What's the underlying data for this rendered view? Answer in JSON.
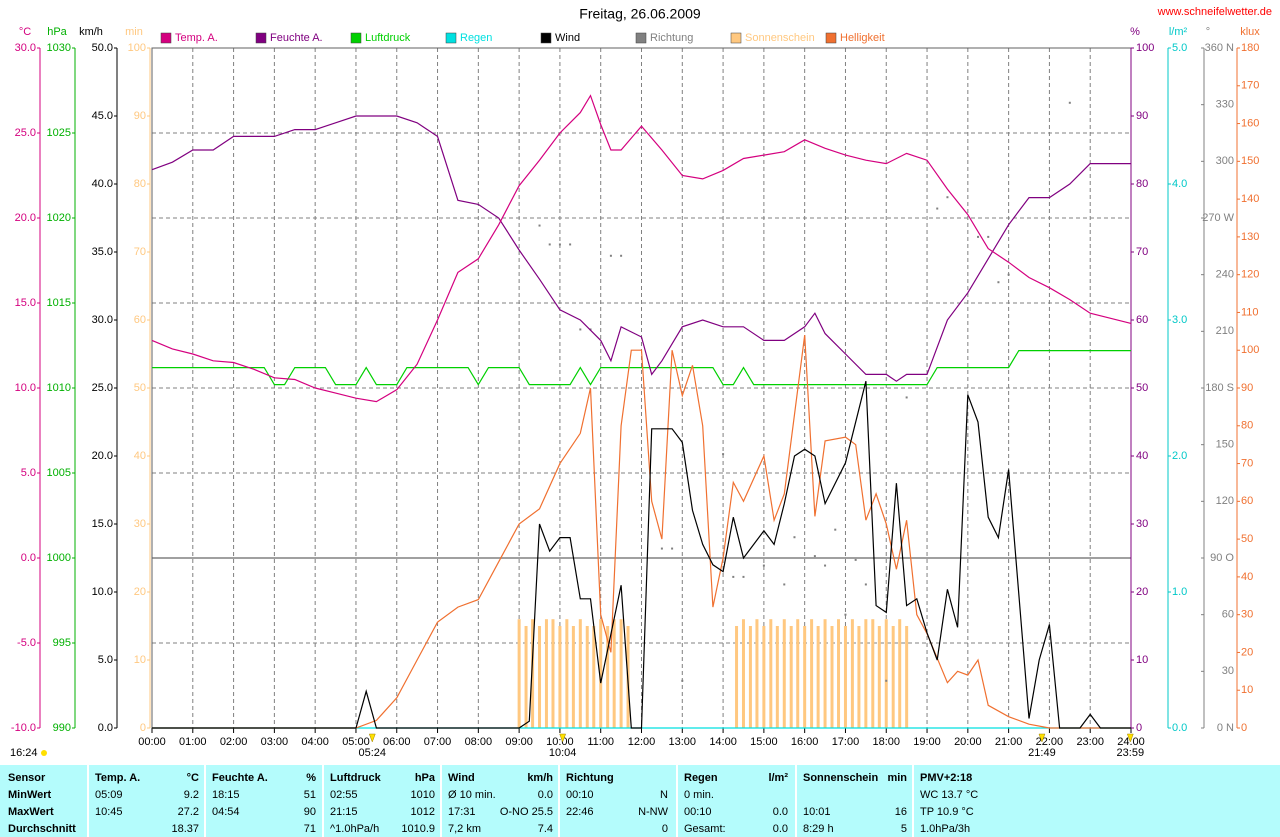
{
  "chart_data": {
    "type": "line",
    "title": "Freitag, 26.06.2009",
    "source": "www.schneifelwetter.de",
    "timestamp": "16:24",
    "xlim": [
      0,
      24
    ],
    "xticks": [
      {
        "value": 0,
        "label": "00:00"
      },
      {
        "value": 1,
        "label": "01:00"
      },
      {
        "value": 2,
        "label": "02:00"
      },
      {
        "value": 3,
        "label": "03:00"
      },
      {
        "value": 4,
        "label": "04:00"
      },
      {
        "value": 5,
        "label": "05:00"
      },
      {
        "value": 6,
        "label": "06:00"
      },
      {
        "value": 7,
        "label": "07:00"
      },
      {
        "value": 8,
        "label": "08:00"
      },
      {
        "value": 9,
        "label": "09:00"
      },
      {
        "value": 10,
        "label": "10:00"
      },
      {
        "value": 11,
        "label": "11:00"
      },
      {
        "value": 12,
        "label": "12:00"
      },
      {
        "value": 13,
        "label": "13:00"
      },
      {
        "value": 14,
        "label": "14:00"
      },
      {
        "value": 15,
        "label": "15:00"
      },
      {
        "value": 16,
        "label": "16:00"
      },
      {
        "value": 17,
        "label": "17:00"
      },
      {
        "value": 18,
        "label": "18:00"
      },
      {
        "value": 19,
        "label": "19:00"
      },
      {
        "value": 20,
        "label": "20:00"
      },
      {
        "value": 21,
        "label": "21:00"
      },
      {
        "value": 22,
        "label": "22:00"
      },
      {
        "value": 23,
        "label": "23:00"
      },
      {
        "value": 24,
        "label": "24:00"
      }
    ],
    "grid": true,
    "grid_axis": 0,
    "zero_line": true,
    "markers": [
      {
        "label": "05:24",
        "x": 5.4
      },
      {
        "label": "10:04",
        "x": 10.067
      },
      {
        "label": "21:49",
        "x": 21.817
      },
      {
        "label": "23:59",
        "x": 23.983
      }
    ],
    "axes": [
      {
        "label": "°C",
        "color": "#d4007f",
        "lim": [
          -10,
          30
        ],
        "ticks": [
          {
            "value": -10,
            "label": "-10.0"
          },
          {
            "value": -5,
            "label": "-5.0"
          },
          {
            "value": 0,
            "label": "0.0"
          },
          {
            "value": 5,
            "label": "5.0"
          },
          {
            "value": 10,
            "label": "10.0"
          },
          {
            "value": 15,
            "label": "15.0"
          },
          {
            "value": 20,
            "label": "20.0"
          },
          {
            "value": 25,
            "label": "25.0"
          },
          {
            "value": 30,
            "label": "30.0"
          }
        ]
      },
      {
        "label": "hPa",
        "color": "#00b000",
        "lim": [
          990,
          1030
        ],
        "ticks": [
          990,
          995,
          1000,
          1005,
          1010,
          1015,
          1020,
          1025,
          1030
        ]
      },
      {
        "label": "km/h",
        "color": "#000000",
        "lim": [
          0,
          50
        ],
        "ticks": [
          {
            "value": 0,
            "label": "0.0"
          },
          {
            "value": 5,
            "label": "5.0"
          },
          {
            "value": 10,
            "label": "10.0"
          },
          {
            "value": 15,
            "label": "15.0"
          },
          {
            "value": 20,
            "label": "20.0"
          },
          {
            "value": 25,
            "label": "25.0"
          },
          {
            "value": 30,
            "label": "30.0"
          },
          {
            "value": 35,
            "label": "35.0"
          },
          {
            "value": 40,
            "label": "40.0"
          },
          {
            "value": 45,
            "label": "45.0"
          },
          {
            "value": 50,
            "label": "50.0"
          }
        ]
      },
      {
        "label": "min",
        "color": "#ffc880",
        "lim": [
          0,
          100
        ],
        "ticks": [
          0,
          10,
          20,
          30,
          40,
          50,
          60,
          70,
          80,
          90,
          100
        ]
      },
      {
        "label": "%",
        "color": "#800080",
        "lim": [
          0,
          100
        ],
        "ticks": [
          0,
          10,
          20,
          30,
          40,
          50,
          60,
          70,
          80,
          90,
          100
        ]
      },
      {
        "label": "l/m²",
        "color": "#00c8c8",
        "lim": [
          0,
          5
        ],
        "ticks": [
          {
            "value": 0,
            "label": "0.0"
          },
          {
            "value": 1,
            "label": "1.0"
          },
          {
            "value": 2,
            "label": "2.0"
          },
          {
            "value": 3,
            "label": "3.0"
          },
          {
            "value": 4,
            "label": "4.0"
          },
          {
            "value": 5,
            "label": "5.0"
          }
        ]
      },
      {
        "label": "°",
        "color": "#808080",
        "lim": [
          0,
          360
        ],
        "ticks": [
          {
            "value": 0,
            "label": "0 N"
          },
          30,
          60,
          {
            "value": 90,
            "label": "90 O"
          },
          120,
          150,
          {
            "value": 180,
            "label": "180 S"
          },
          210,
          240,
          {
            "value": 270,
            "label": "270 W"
          },
          300,
          330,
          {
            "value": 360,
            "label": "360 N"
          }
        ]
      },
      {
        "label": "klux",
        "color": "#f07030",
        "lim": [
          0,
          180
        ],
        "ticks": [
          0,
          10,
          20,
          30,
          40,
          50,
          60,
          70,
          80,
          90,
          100,
          110,
          120,
          130,
          140,
          150,
          160,
          170,
          180
        ]
      }
    ],
    "series": [
      {
        "name": "Temp. A.",
        "color": "#d4007f",
        "axis": 0,
        "style": "line",
        "x": [
          0,
          0.5,
          1,
          1.5,
          2,
          2.5,
          3,
          3.5,
          4,
          4.5,
          5,
          5.5,
          6,
          6.5,
          7,
          7.5,
          8,
          8.5,
          9,
          9.5,
          10,
          10.5,
          10.75,
          11,
          11.25,
          11.5,
          12,
          12.5,
          13,
          13.5,
          14,
          14.5,
          15,
          15.5,
          16,
          16.5,
          17,
          17.5,
          18,
          18.5,
          19,
          19.5,
          20,
          20.5,
          21,
          21.5,
          22,
          22.5,
          23,
          23.5,
          24
        ],
        "values": [
          12.8,
          12.3,
          12.0,
          11.6,
          11.5,
          11.1,
          10.6,
          10.5,
          10.0,
          9.7,
          9.4,
          9.2,
          9.9,
          11.4,
          14.0,
          16.8,
          17.6,
          19.6,
          21.9,
          23.4,
          25.0,
          26.2,
          27.2,
          25.5,
          24.0,
          24.0,
          25.4,
          24.0,
          22.5,
          22.3,
          22.8,
          23.5,
          23.7,
          23.9,
          24.6,
          24.1,
          23.7,
          23.4,
          23.2,
          23.8,
          23.4,
          21.7,
          20.2,
          18.2,
          17.4,
          16.5,
          15.9,
          15.2,
          14.4,
          14.1,
          13.8
        ]
      },
      {
        "name": "Feuchte A.",
        "color": "#800080",
        "axis": 4,
        "style": "line",
        "x": [
          0,
          0.5,
          1,
          1.5,
          2,
          2.5,
          3,
          3.5,
          4,
          4.5,
          5,
          5.5,
          6,
          6.5,
          7,
          7.5,
          8,
          8.5,
          9,
          9.5,
          10,
          10.5,
          11,
          11.25,
          11.5,
          12,
          12.25,
          12.5,
          13,
          13.5,
          14,
          14.5,
          15,
          15.5,
          16,
          16.25,
          16.5,
          17,
          17.5,
          18,
          18.25,
          18.5,
          19,
          19.5,
          20,
          20.5,
          21,
          21.5,
          22,
          22.5,
          23,
          23.5,
          24
        ],
        "values": [
          82.1,
          83.2,
          85,
          85,
          87,
          87,
          87,
          88,
          88,
          89,
          90,
          90,
          90,
          89,
          87,
          77.6,
          77,
          75,
          70.3,
          66,
          61.5,
          60,
          57,
          54,
          59,
          57.5,
          52,
          54,
          59,
          60,
          59,
          59,
          57,
          57,
          59,
          61,
          58,
          55,
          52,
          52,
          51,
          52,
          52,
          60,
          64,
          69,
          74,
          78,
          78,
          80,
          83,
          83,
          83
        ]
      },
      {
        "name": "Luftdruck",
        "color": "#00d000",
        "axis": 1,
        "style": "line",
        "x": [
          0,
          2.75,
          3,
          3.25,
          3.5,
          4.25,
          4.5,
          5,
          5.25,
          5.5,
          6,
          6.25,
          7.75,
          8,
          8.25,
          9,
          9.25,
          10.25,
          10.5,
          10.75,
          11,
          13.75,
          14,
          14.25,
          14.5,
          14.75,
          19,
          19.25,
          21,
          21.25,
          24
        ],
        "values": [
          1011.2,
          1011.2,
          1010.2,
          1010.2,
          1011.2,
          1011.2,
          1010.2,
          1010.2,
          1011.2,
          1010.2,
          1010.2,
          1011.2,
          1011.2,
          1010.2,
          1011.2,
          1011.2,
          1010.2,
          1010.2,
          1011.2,
          1010.2,
          1011.2,
          1011.2,
          1010.2,
          1010.2,
          1011.2,
          1010.2,
          1010.2,
          1011.2,
          1011.2,
          1012.2,
          1012.2
        ]
      },
      {
        "name": "Regen",
        "color": "#00e0e0",
        "axis": 5,
        "style": "line",
        "x": [
          0,
          24
        ],
        "values": [
          0,
          0
        ]
      },
      {
        "name": "Wind",
        "color": "#000000",
        "axis": 2,
        "style": "line",
        "x": [
          0,
          5,
          5.25,
          5.5,
          9,
          9.25,
          9.5,
          9.75,
          10,
          10.25,
          10.5,
          10.75,
          11,
          11.5,
          11.75,
          12,
          12.25,
          12.75,
          13,
          13.25,
          13.5,
          13.75,
          14,
          14.25,
          14.5,
          15,
          15.25,
          15.5,
          15.75,
          16,
          16.25,
          16.5,
          17,
          17.5,
          17.75,
          18,
          18.25,
          18.5,
          18.75,
          19,
          19.25,
          19.5,
          19.75,
          20,
          20.25,
          20.5,
          20.75,
          21,
          21.5,
          21.75,
          22,
          22.25,
          22.75,
          23,
          23.25,
          24
        ],
        "values": [
          0,
          0,
          2.7,
          0,
          0,
          0.5,
          15,
          13,
          14,
          14,
          9.5,
          9.5,
          3.3,
          10.5,
          0,
          0,
          22,
          22,
          21,
          16,
          13.5,
          12,
          11.5,
          15.5,
          12.5,
          14.5,
          13.5,
          16.5,
          20,
          20.5,
          20,
          16.5,
          19.5,
          25.5,
          9,
          8.5,
          18,
          9,
          9.5,
          7,
          5,
          10.2,
          7.4,
          24.5,
          22.5,
          15.5,
          14,
          19,
          0.7,
          5,
          7.6,
          0,
          0,
          1,
          0,
          0
        ]
      },
      {
        "name": "Richtung",
        "color": "#808080",
        "axis": 6,
        "style": "dots",
        "x": [
          9.5,
          9.75,
          10,
          10.25,
          10.5,
          10.75,
          11.25,
          11.5,
          12.5,
          12.75,
          13,
          14,
          14.25,
          14.5,
          15,
          15.5,
          15.75,
          16.25,
          16.5,
          16.75,
          17,
          17.25,
          17.5,
          18,
          18.5,
          19.25,
          19.5,
          20.25,
          20.5,
          20.75,
          21,
          22.5
        ],
        "values": [
          266,
          256,
          256,
          256,
          211,
          211,
          250,
          250,
          95,
          95,
          25,
          145,
          80,
          80,
          86,
          76,
          101,
          91,
          86,
          105,
          60,
          89,
          76,
          25,
          175,
          275,
          281,
          260,
          260,
          236,
          240,
          331
        ]
      },
      {
        "name": "Sonnenschein",
        "color": "#ffc880",
        "axis": 3,
        "style": "bars",
        "x": [
          9,
          9.17,
          9.33,
          9.5,
          9.67,
          9.83,
          10,
          10.17,
          10.33,
          10.5,
          10.67,
          10.83,
          11,
          11.17,
          11.33,
          11.5,
          11.67,
          14.33,
          14.5,
          14.67,
          14.83,
          15,
          15.17,
          15.33,
          15.5,
          15.67,
          15.83,
          16,
          16.17,
          16.33,
          16.5,
          16.67,
          16.83,
          17,
          17.17,
          17.33,
          17.5,
          17.67,
          17.83,
          18,
          18.17,
          18.33,
          18.5
        ],
        "values": [
          16,
          15,
          16,
          15,
          16,
          16,
          15,
          16,
          15,
          16,
          15,
          15,
          16,
          15,
          16,
          16,
          15,
          15,
          16,
          15,
          16,
          15,
          16,
          15,
          16,
          15,
          16,
          15,
          16,
          15,
          16,
          15,
          16,
          15,
          16,
          15,
          16,
          16,
          15,
          16,
          15,
          16,
          15
        ]
      },
      {
        "name": "Helligkeit",
        "color": "#f07030",
        "axis": 7,
        "style": "line",
        "x": [
          0,
          5,
          5.5,
          6,
          6.5,
          7,
          7.5,
          8,
          8.5,
          9,
          9.5,
          10,
          10.5,
          10.75,
          11,
          11.25,
          11.5,
          11.75,
          12,
          12.25,
          12.5,
          12.75,
          13,
          13.25,
          13.5,
          13.75,
          14,
          14.25,
          14.5,
          15,
          15.25,
          15.5,
          16,
          16.25,
          16.5,
          17,
          17.25,
          17.5,
          17.75,
          18,
          18.25,
          18.5,
          18.75,
          19,
          19.5,
          19.75,
          20,
          20.25,
          20.5,
          21,
          21.5,
          22,
          24
        ],
        "values": [
          0,
          0,
          2,
          8,
          18,
          28,
          32,
          34,
          44,
          54,
          58,
          70,
          78,
          90,
          30,
          20,
          80,
          100,
          100,
          60,
          50,
          100,
          88,
          96,
          80,
          32,
          45,
          65,
          60,
          72,
          55,
          62,
          104,
          56,
          76,
          77,
          75,
          55,
          62,
          54,
          42,
          55,
          30,
          25,
          12,
          15,
          14,
          18,
          6,
          3,
          1,
          0,
          0
        ]
      }
    ]
  },
  "table": {
    "rows": [
      [
        {
          "l": "Sensor"
        },
        {
          "l": "Temp. A.",
          "r": "°C"
        },
        {
          "l": "Feuchte A.",
          "r": "%"
        },
        {
          "l": "Luftdruck",
          "r": "hPa"
        },
        {
          "l": "Wind",
          "r": "km/h"
        },
        {
          "l": "Richtung"
        },
        {
          "l": "Regen",
          "r": "l/m²"
        },
        {
          "l": "Sonnenschein",
          "r": "min"
        },
        {
          "l": "PMV+2:18"
        }
      ],
      [
        {
          "l": "MinWert"
        },
        {
          "l": "05:09",
          "r": "9.2"
        },
        {
          "l": "18:15",
          "r": "51"
        },
        {
          "l": "02:55",
          "r": "1010"
        },
        {
          "l": "Ø 10 min.",
          "r": "0.0"
        },
        {
          "l": "00:10",
          "r": "N"
        },
        {
          "l": "0 min."
        },
        null,
        {
          "l": "WC 13.7 °C"
        }
      ],
      [
        {
          "l": "MaxWert"
        },
        {
          "l": "10:45",
          "r": "27.2"
        },
        {
          "l": "04:54",
          "r": "90"
        },
        {
          "l": "21:15",
          "r": "1012"
        },
        {
          "l": "17:31",
          "r": "O-NO 25.5"
        },
        {
          "l": "22:46",
          "r": "N-NW"
        },
        {
          "l": "00:10",
          "r": "0.0"
        },
        {
          "l": "10:01",
          "r": "16"
        },
        {
          "l": "TP 10.9 °C"
        }
      ],
      [
        {
          "l": "Durchschnitt"
        },
        {
          "r": "18.37"
        },
        {
          "r": "71"
        },
        {
          "l": "^1.0hPa/h",
          "r": "1010.9"
        },
        {
          "l": "7,2 km",
          "r": "7.4"
        },
        {
          "r": "0"
        },
        {
          "l": "Gesamt:",
          "r": "0.0"
        },
        {
          "l": "8:29 h",
          "r": "5"
        },
        {
          "l": "1.0hPa/3h"
        }
      ]
    ]
  }
}
